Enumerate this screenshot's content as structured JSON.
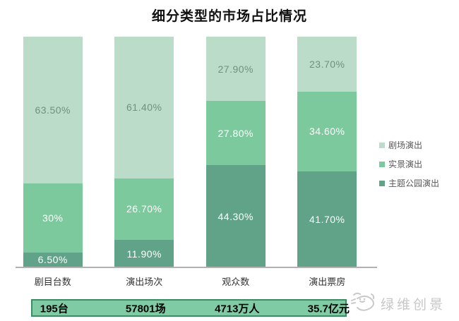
{
  "chart_data": {
    "type": "bar",
    "stacked": true,
    "title": "细分类型的市场占比情况",
    "categories": [
      "剧目台数",
      "演出场次",
      "观众数",
      "演出票房"
    ],
    "series": [
      {
        "name": "主题公园演出",
        "color": "#61a388",
        "label_color": "#ffffff",
        "values": [
          6.5,
          11.9,
          44.3,
          41.7
        ],
        "labels": [
          "6.50%",
          "11.90%",
          "44.30%",
          "41.70%"
        ]
      },
      {
        "name": "实景演出",
        "color": "#7cc99e",
        "label_color": "#ffffff",
        "values": [
          30,
          26.7,
          27.8,
          34.6
        ],
        "labels": [
          "30%",
          "26.70%",
          "27.80%",
          "34.60%"
        ]
      },
      {
        "name": "剧场演出",
        "color": "#badcc9",
        "label_color": "#6f917f",
        "values": [
          63.5,
          61.4,
          27.9,
          23.7
        ],
        "labels": [
          "63.50%",
          "61.40%",
          "27.90%",
          "23.70%"
        ]
      }
    ],
    "legend_position": "right",
    "legend_order_top_to_bottom": [
      "剧场演出",
      "实景演出",
      "主题公园演出"
    ],
    "ylim": [
      0,
      100
    ],
    "grid": false,
    "unit": "%",
    "totals_row": {
      "values": [
        "195台",
        "57801场",
        "4713万人",
        "35.7亿元"
      ],
      "fill": "#7fcba4",
      "border": "#3f8a64"
    }
  },
  "watermark": {
    "text": "绿维创景"
  }
}
